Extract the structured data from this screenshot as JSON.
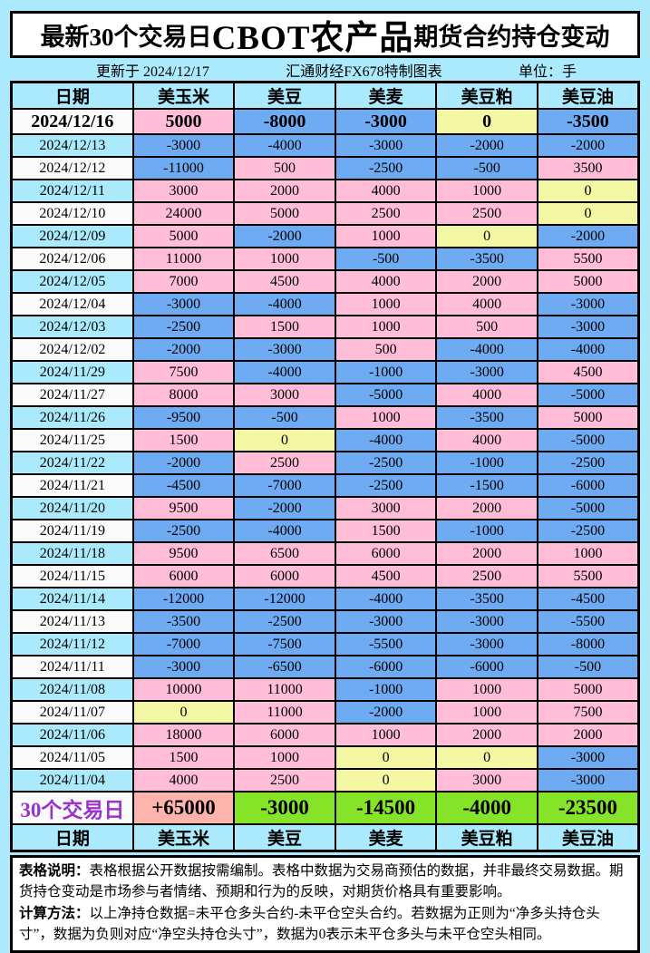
{
  "title": {
    "prefix": "最新30个交易日",
    "brand": "CBOT农产品",
    "suffix": "期货合约持仓变动"
  },
  "meta": {
    "updated": "更新于 2024/12/17",
    "source": "汇通财经FX678特制图表",
    "unit": "单位：手"
  },
  "colors": {
    "page_bg": "#ABE9FC",
    "positive_cell": "#FFBDD8",
    "negative_cell": "#6EABF2",
    "zero_cell": "#F3F6A2",
    "summary_positive_cell": "#FFB3AD",
    "summary_negative_cell": "#86E428",
    "summary_label_text": "#9933CC",
    "white_row": "#FBFBFB",
    "cyan_row": "#ABE9FC"
  },
  "chart_data": {
    "type": "table",
    "title": "最新30个交易日CBOT农产品期货合约持仓变动",
    "unit": "手",
    "columns": [
      "日期",
      "美玉米",
      "美豆",
      "美麦",
      "美豆粕",
      "美豆油"
    ],
    "rows": [
      {
        "date": "2024/12/16",
        "values": [
          5000,
          -8000,
          -3000,
          0,
          -3500
        ],
        "bold": true
      },
      {
        "date": "2024/12/13",
        "values": [
          -3000,
          -4000,
          -3000,
          -2000,
          -2000
        ]
      },
      {
        "date": "2024/12/12",
        "values": [
          -11000,
          500,
          -2500,
          -500,
          3500
        ]
      },
      {
        "date": "2024/12/11",
        "values": [
          3000,
          2000,
          4000,
          1000,
          0
        ]
      },
      {
        "date": "2024/12/10",
        "values": [
          24000,
          5000,
          2500,
          2500,
          0
        ]
      },
      {
        "date": "2024/12/09",
        "values": [
          5000,
          -2000,
          1000,
          0,
          -2000
        ]
      },
      {
        "date": "2024/12/06",
        "values": [
          11000,
          1000,
          -500,
          -3500,
          5500
        ]
      },
      {
        "date": "2024/12/05",
        "values": [
          7000,
          4500,
          4000,
          2000,
          5000
        ]
      },
      {
        "date": "2024/12/04",
        "values": [
          -3000,
          -4000,
          1000,
          4000,
          -3000
        ]
      },
      {
        "date": "2024/12/03",
        "values": [
          -2500,
          1500,
          1000,
          500,
          -3000
        ]
      },
      {
        "date": "2024/12/02",
        "values": [
          -2000,
          -3000,
          500,
          -4000,
          -4000
        ]
      },
      {
        "date": "2024/11/29",
        "values": [
          7500,
          -4000,
          -1000,
          -3000,
          4500
        ]
      },
      {
        "date": "2024/11/27",
        "values": [
          8000,
          3000,
          -5000,
          4000,
          -5000
        ]
      },
      {
        "date": "2024/11/26",
        "values": [
          -9500,
          -500,
          1000,
          -3500,
          5000
        ]
      },
      {
        "date": "2024/11/25",
        "values": [
          1500,
          0,
          -4000,
          4000,
          -5000
        ]
      },
      {
        "date": "2024/11/22",
        "values": [
          -2000,
          2500,
          -2500,
          -1000,
          -2500
        ]
      },
      {
        "date": "2024/11/21",
        "values": [
          -4500,
          -7000,
          -2500,
          -1500,
          -6000
        ]
      },
      {
        "date": "2024/11/20",
        "values": [
          9500,
          -2000,
          3000,
          2000,
          -5000
        ]
      },
      {
        "date": "2024/11/19",
        "values": [
          -2500,
          -4000,
          1500,
          -1000,
          -2500
        ]
      },
      {
        "date": "2024/11/18",
        "values": [
          9500,
          6500,
          6000,
          2000,
          1000
        ]
      },
      {
        "date": "2024/11/15",
        "values": [
          6000,
          6000,
          4500,
          2500,
          5500
        ]
      },
      {
        "date": "2024/11/14",
        "values": [
          -12000,
          -12000,
          -4000,
          -3500,
          -4500
        ]
      },
      {
        "date": "2024/11/13",
        "values": [
          -3500,
          -2500,
          -3000,
          -3000,
          -5500
        ]
      },
      {
        "date": "2024/11/12",
        "values": [
          -7000,
          -7500,
          -5500,
          -3000,
          -8000
        ]
      },
      {
        "date": "2024/11/11",
        "values": [
          -3000,
          -6500,
          -6000,
          -6000,
          -500
        ]
      },
      {
        "date": "2024/11/08",
        "values": [
          10000,
          11000,
          -1000,
          1000,
          5000
        ]
      },
      {
        "date": "2024/11/07",
        "values": [
          0,
          11000,
          -2000,
          1000,
          7500
        ]
      },
      {
        "date": "2024/11/06",
        "values": [
          18000,
          6000,
          1000,
          2000,
          2000
        ]
      },
      {
        "date": "2024/11/05",
        "values": [
          1500,
          1000,
          0,
          0,
          -3000
        ]
      },
      {
        "date": "2024/11/04",
        "values": [
          4000,
          2500,
          0,
          3000,
          -3000
        ]
      }
    ],
    "summary": {
      "label": "30个交易日",
      "values": [
        "+65000",
        "-3000",
        "-14500",
        "-4000",
        "-23500"
      ]
    },
    "footer_columns": [
      "日期",
      "美玉米",
      "美豆",
      "美麦",
      "美豆粕",
      "美豆油"
    ]
  },
  "notes": {
    "note1_label": "表格说明：",
    "note1_text": "表格根据公开数据按需编制。表格中数据为交易商预估的数据，并非最终交易数据。期货持仓变动是市场参与者情绪、预期和行为的反映，对期货价格具有重要影响。",
    "note2_label": "计算方法：",
    "note2_text": "以上净持仓数据=未平仓多头合约-未平仓空头合约。若数据为正则为“净多头持仓头寸”，数据为负则对应“净空头持仓头寸”，数据为0表示未平仓多头与未平仓空头相同。"
  }
}
